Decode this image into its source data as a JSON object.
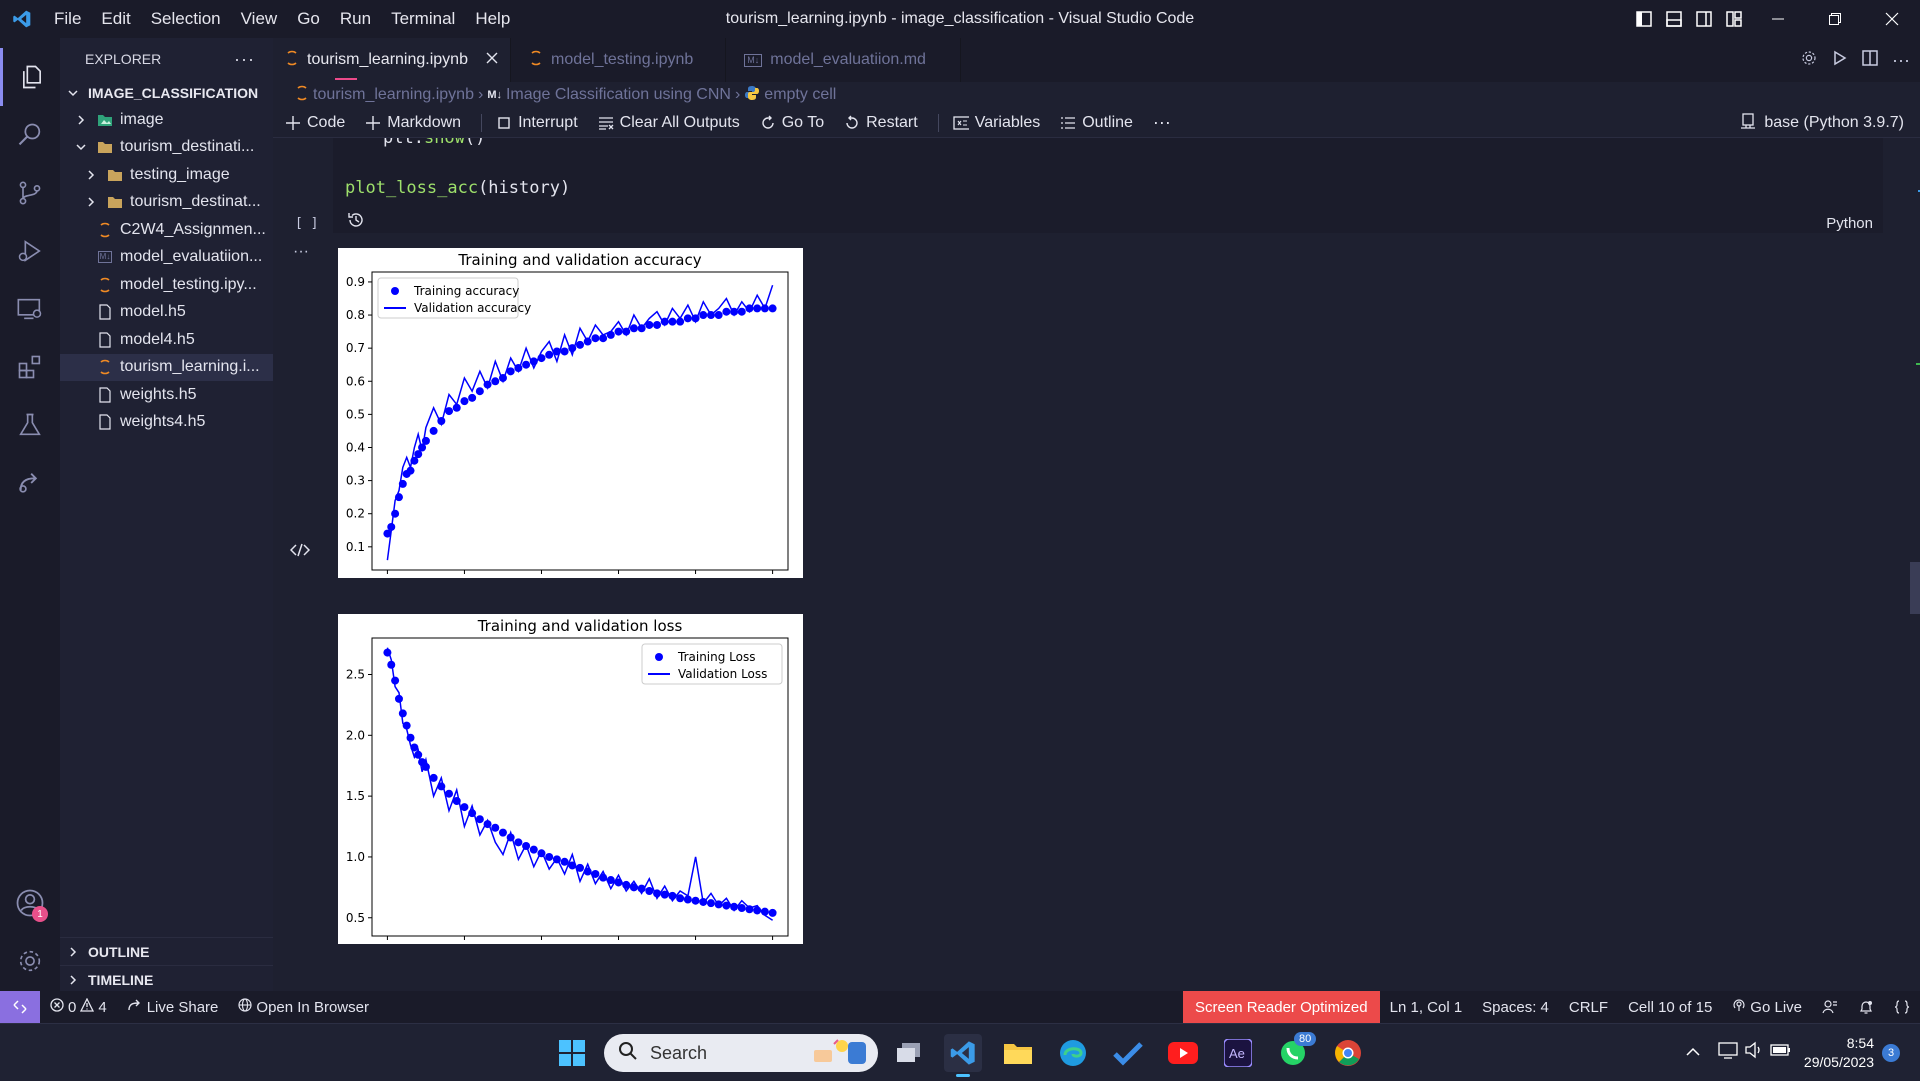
{
  "window": {
    "title": "tourism_learning.ipynb - image_classification - Visual Studio Code"
  },
  "menu": [
    "File",
    "Edit",
    "Selection",
    "View",
    "Go",
    "Run",
    "Terminal",
    "Help"
  ],
  "explorer": {
    "header": "EXPLORER",
    "root": "IMAGE_CLASSIFICATION",
    "items": [
      {
        "label": "image",
        "type": "folder-img",
        "depth": 1,
        "expanded": false
      },
      {
        "label": "tourism_destinati...",
        "type": "folder",
        "depth": 1,
        "expanded": true
      },
      {
        "label": "testing_image",
        "type": "folder",
        "depth": 2,
        "expanded": false
      },
      {
        "label": "tourism_destinat...",
        "type": "folder",
        "depth": 2,
        "expanded": false
      },
      {
        "label": "C2W4_Assignmen...",
        "type": "notebook",
        "depth": 1
      },
      {
        "label": "model_evaluatiion...",
        "type": "markdown",
        "depth": 1
      },
      {
        "label": "model_testing.ipy...",
        "type": "notebook",
        "depth": 1
      },
      {
        "label": "model.h5",
        "type": "file",
        "depth": 1
      },
      {
        "label": "model4.h5",
        "type": "file",
        "depth": 1
      },
      {
        "label": "tourism_learning.i...",
        "type": "notebook",
        "depth": 1,
        "selected": true
      },
      {
        "label": "weights.h5",
        "type": "file",
        "depth": 1
      },
      {
        "label": "weights4.h5",
        "type": "file",
        "depth": 1
      }
    ],
    "outline": "OUTLINE",
    "timeline": "TIMELINE",
    "accounts_badge": "1"
  },
  "tabs": [
    {
      "label": "tourism_learning.ipynb",
      "active": true,
      "icon": "notebook-icon"
    },
    {
      "label": "model_testing.ipynb",
      "active": false,
      "icon": "notebook-icon"
    },
    {
      "label": "model_evaluatiion.md",
      "active": false,
      "icon": "markdown-icon"
    }
  ],
  "breadcrumb": [
    "tourism_learning.ipynb",
    "Image Classification using CNN",
    "empty cell"
  ],
  "toolbar": {
    "code": "Code",
    "markdown": "Markdown",
    "interrupt": "Interrupt",
    "clear": "Clear All Outputs",
    "goto": "Go To",
    "restart": "Restart",
    "variables": "Variables",
    "outline": "Outline",
    "kernel": "base (Python 3.9.7)"
  },
  "cell": {
    "line1_obj": "plt.",
    "line1_fn": "show",
    "line1_end": "()",
    "line2_fn": "plot_loss_acc",
    "line2_end": "(history)",
    "exec": "[ ]",
    "language": "Python"
  },
  "status": {
    "errors": "0",
    "warnings": "4",
    "live_share": "Live Share",
    "open_browser": "Open In Browser",
    "screen_reader": "Screen Reader Optimized",
    "position": "Ln 1, Col 1",
    "spaces": "Spaces: 4",
    "eol": "CRLF",
    "cell": "Cell 10 of 15",
    "go_live": "Go Live"
  },
  "taskbar": {
    "search": "Search",
    "whatsapp_badge": "80",
    "time": "8:54",
    "date": "29/05/2023",
    "notif": "3"
  },
  "chart_data": [
    {
      "type": "scatter",
      "title": "Training and validation accuracy",
      "xlim": [
        -4,
        104
      ],
      "ylim": [
        0.03,
        0.93
      ],
      "xticks": [
        0,
        20,
        40,
        60,
        80,
        100
      ],
      "yticks": [
        0.1,
        0.2,
        0.3,
        0.4,
        0.5,
        0.6,
        0.7,
        0.8,
        0.9
      ],
      "legend_position": "upper-left",
      "color": "#0000ff",
      "series": [
        {
          "name": "Training accuracy",
          "style": "dots",
          "x": [
            0,
            1,
            2,
            3,
            4,
            5,
            6,
            7,
            8,
            9,
            10,
            12,
            14,
            16,
            18,
            20,
            22,
            24,
            26,
            28,
            30,
            32,
            34,
            36,
            38,
            40,
            42,
            44,
            46,
            48,
            50,
            52,
            54,
            56,
            58,
            60,
            62,
            64,
            66,
            68,
            70,
            72,
            74,
            76,
            78,
            80,
            82,
            84,
            86,
            88,
            90,
            92,
            94,
            96,
            98,
            100
          ],
          "y": [
            0.14,
            0.16,
            0.2,
            0.25,
            0.29,
            0.32,
            0.33,
            0.36,
            0.38,
            0.4,
            0.42,
            0.45,
            0.48,
            0.51,
            0.52,
            0.54,
            0.55,
            0.57,
            0.59,
            0.6,
            0.61,
            0.63,
            0.64,
            0.65,
            0.66,
            0.67,
            0.68,
            0.69,
            0.69,
            0.7,
            0.71,
            0.72,
            0.73,
            0.73,
            0.74,
            0.75,
            0.75,
            0.76,
            0.76,
            0.77,
            0.77,
            0.78,
            0.78,
            0.78,
            0.79,
            0.79,
            0.8,
            0.8,
            0.8,
            0.81,
            0.81,
            0.81,
            0.82,
            0.82,
            0.82,
            0.82
          ]
        },
        {
          "name": "Validation accuracy",
          "style": "line",
          "x": [
            0,
            1,
            2,
            3,
            4,
            5,
            6,
            7,
            8,
            9,
            10,
            12,
            14,
            16,
            18,
            20,
            22,
            24,
            26,
            28,
            30,
            32,
            34,
            36,
            38,
            40,
            42,
            44,
            46,
            48,
            50,
            52,
            54,
            56,
            58,
            60,
            62,
            64,
            66,
            68,
            70,
            72,
            74,
            76,
            78,
            80,
            82,
            84,
            86,
            88,
            90,
            92,
            94,
            96,
            98,
            100
          ],
          "y": [
            0.06,
            0.15,
            0.24,
            0.27,
            0.34,
            0.37,
            0.34,
            0.4,
            0.44,
            0.39,
            0.46,
            0.52,
            0.47,
            0.56,
            0.53,
            0.61,
            0.57,
            0.63,
            0.58,
            0.66,
            0.6,
            0.67,
            0.63,
            0.7,
            0.64,
            0.69,
            0.72,
            0.66,
            0.74,
            0.68,
            0.76,
            0.72,
            0.77,
            0.74,
            0.75,
            0.78,
            0.74,
            0.8,
            0.76,
            0.79,
            0.81,
            0.77,
            0.82,
            0.79,
            0.83,
            0.78,
            0.84,
            0.8,
            0.82,
            0.85,
            0.8,
            0.84,
            0.81,
            0.86,
            0.82,
            0.89
          ]
        }
      ]
    },
    {
      "type": "scatter",
      "title": "Training and validation loss",
      "xlim": [
        -4,
        104
      ],
      "ylim": [
        0.35,
        2.8
      ],
      "xticks": [
        0,
        20,
        40,
        60,
        80,
        100
      ],
      "yticks": [
        0.5,
        1.0,
        1.5,
        2.0,
        2.5
      ],
      "legend_position": "upper-right",
      "color": "#0000ff",
      "series": [
        {
          "name": "Training Loss",
          "style": "dots",
          "x": [
            0,
            1,
            2,
            3,
            4,
            5,
            6,
            7,
            8,
            9,
            10,
            12,
            14,
            16,
            18,
            20,
            22,
            24,
            26,
            28,
            30,
            32,
            34,
            36,
            38,
            40,
            42,
            44,
            46,
            48,
            50,
            52,
            54,
            56,
            58,
            60,
            62,
            64,
            66,
            68,
            70,
            72,
            74,
            76,
            78,
            80,
            82,
            84,
            86,
            88,
            90,
            92,
            94,
            96,
            98,
            100
          ],
          "y": [
            2.68,
            2.58,
            2.45,
            2.3,
            2.18,
            2.08,
            1.98,
            1.9,
            1.84,
            1.78,
            1.74,
            1.65,
            1.58,
            1.52,
            1.46,
            1.41,
            1.36,
            1.31,
            1.27,
            1.24,
            1.2,
            1.16,
            1.12,
            1.09,
            1.06,
            1.03,
            1.0,
            0.98,
            0.96,
            0.93,
            0.91,
            0.88,
            0.86,
            0.83,
            0.81,
            0.79,
            0.77,
            0.75,
            0.74,
            0.72,
            0.7,
            0.69,
            0.68,
            0.66,
            0.65,
            0.64,
            0.63,
            0.62,
            0.61,
            0.6,
            0.59,
            0.58,
            0.57,
            0.56,
            0.55,
            0.54
          ]
        },
        {
          "name": "Validation Loss",
          "style": "line",
          "x": [
            0,
            1,
            2,
            3,
            4,
            5,
            6,
            7,
            8,
            9,
            10,
            12,
            14,
            16,
            18,
            20,
            22,
            24,
            26,
            28,
            30,
            32,
            34,
            36,
            38,
            40,
            42,
            44,
            46,
            48,
            50,
            52,
            54,
            56,
            58,
            60,
            62,
            64,
            66,
            68,
            70,
            72,
            74,
            76,
            78,
            80,
            82,
            84,
            86,
            88,
            90,
            92,
            94,
            96,
            98,
            100
          ],
          "y": [
            2.72,
            2.62,
            2.4,
            2.35,
            2.1,
            2.05,
            1.92,
            1.82,
            1.88,
            1.7,
            1.8,
            1.5,
            1.65,
            1.38,
            1.55,
            1.25,
            1.42,
            1.18,
            1.3,
            1.12,
            1.02,
            1.2,
            0.98,
            1.1,
            0.92,
            1.05,
            0.9,
            0.99,
            0.86,
            1.02,
            0.8,
            0.94,
            0.78,
            0.88,
            0.74,
            0.85,
            0.72,
            0.8,
            0.7,
            0.82,
            0.66,
            0.76,
            0.64,
            0.72,
            0.68,
            1.0,
            0.62,
            0.7,
            0.6,
            0.66,
            0.56,
            0.64,
            0.58,
            0.6,
            0.52,
            0.48
          ]
        }
      ]
    }
  ]
}
